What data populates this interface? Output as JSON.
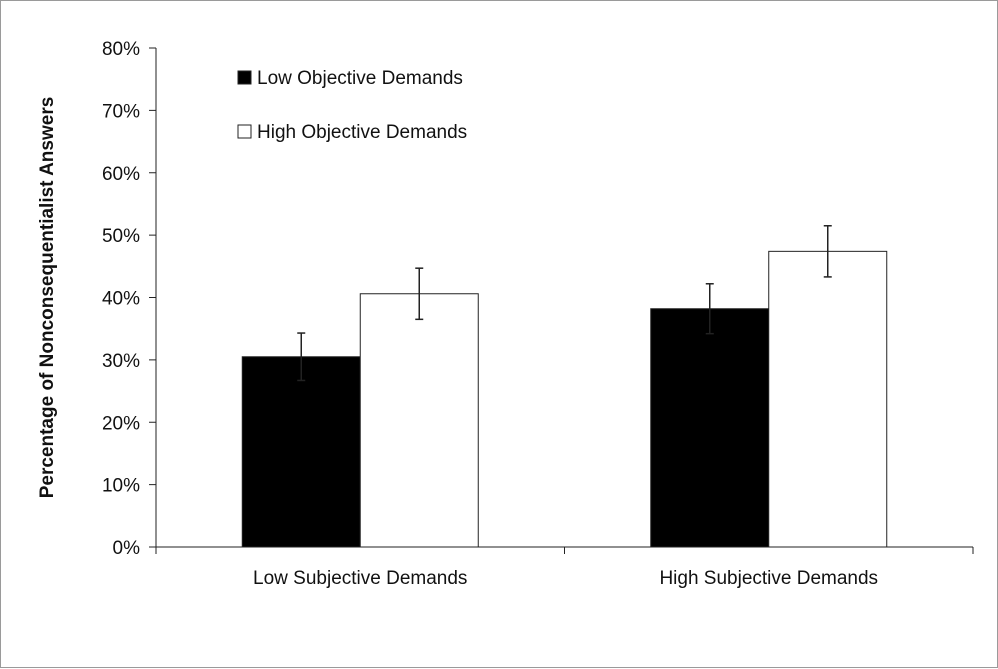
{
  "chart_data": {
    "type": "bar",
    "title": "",
    "xlabel": "",
    "ylabel": "Percentage of Nonconsequentialist Answers",
    "categories": [
      "Low Subjective Demands",
      "High Subjective Demands"
    ],
    "series": [
      {
        "name": "Low Objective Demands",
        "values": [
          30.5,
          38.2
        ],
        "errors": [
          3.8,
          4.0
        ],
        "color": "#000000"
      },
      {
        "name": "High Objective Demands",
        "values": [
          40.6,
          47.4
        ],
        "errors": [
          4.1,
          4.1
        ],
        "color": "#ffffff"
      }
    ],
    "ylim": [
      0,
      80
    ],
    "yticks": [
      "0%",
      "10%",
      "20%",
      "30%",
      "40%",
      "50%",
      "60%",
      "70%",
      "80%"
    ],
    "grid": false,
    "legend": "top-left"
  }
}
